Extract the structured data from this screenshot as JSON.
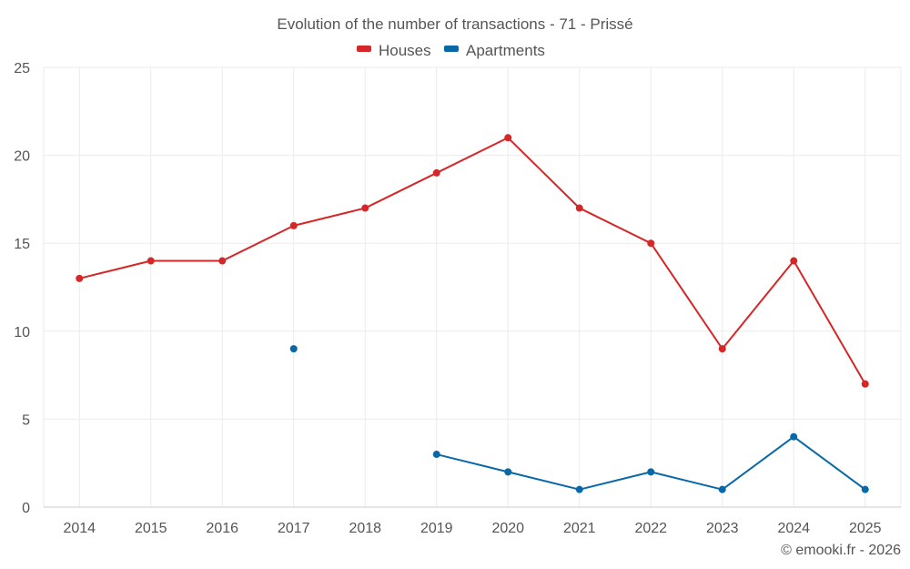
{
  "chart_data": {
    "type": "line",
    "title": "Evolution of the number of transactions - 71 - Prissé",
    "categories": [
      "2014",
      "2015",
      "2016",
      "2017",
      "2018",
      "2019",
      "2020",
      "2021",
      "2022",
      "2023",
      "2024",
      "2025"
    ],
    "series": [
      {
        "name": "Houses",
        "color": "#d62728",
        "values": [
          13,
          14,
          14,
          16,
          17,
          19,
          21,
          17,
          15,
          9,
          14,
          7
        ]
      },
      {
        "name": "Apartments",
        "color": "#0868a8",
        "values": [
          null,
          null,
          null,
          9,
          null,
          3,
          2,
          1,
          2,
          1,
          4,
          1
        ]
      }
    ],
    "ylim": [
      0,
      25
    ],
    "yticks": [
      0,
      5,
      10,
      15,
      20,
      25
    ],
    "grid": true,
    "legend_position": "top-center",
    "credit": "© emooki.fr - 2026"
  }
}
